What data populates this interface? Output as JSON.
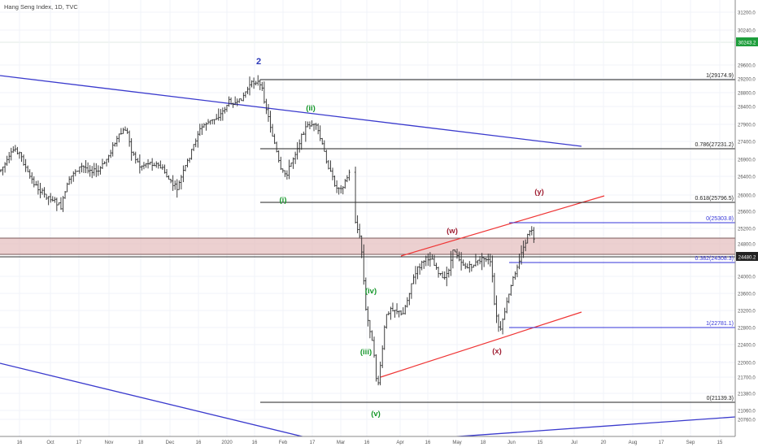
{
  "header": {
    "title": "Hang Seng Index, 1D, TVC"
  },
  "colors": {
    "background": "#ffffff",
    "bar": "#2b2b2b",
    "grid": "#f0f3f8",
    "channel_blue": "#3a3acd",
    "channel_red": "#ef3535",
    "fib_blue": "#3434d8",
    "fib_black": "#222222",
    "zone_fill": "#e6c0c0",
    "wave_blue": "#2a37b8",
    "wave_green": "#15972a",
    "wave_red": "#a02034",
    "price_tag_green": "#1e9e3c",
    "price_tag_dark": "#222222"
  },
  "chart_data": {
    "type": "ohlc",
    "symbol": "Hang Seng Index",
    "interval": "1D",
    "source": "TVC",
    "grid": true,
    "y_axis": {
      "position": "right",
      "range": [
        20600,
        31500
      ],
      "ticks": [
        "31200.0",
        "30240.0",
        "29600.0",
        "29200.0",
        "28800.0",
        "28400.0",
        "27900.0",
        "27400.0",
        "26900.0",
        "26400.0",
        "26000.0",
        "25600.0",
        "25200.0",
        "24800.0",
        "24000.0",
        "23600.0",
        "23200.0",
        "22800.0",
        "22400.0",
        "22000.0",
        "21700.0",
        "21380.0",
        "21060.0",
        "20760.0"
      ]
    },
    "x_axis": {
      "ticks": [
        "16",
        "Oct",
        "17",
        "Nov",
        "18",
        "Dec",
        "16",
        "2020",
        "16",
        "Feb",
        "17",
        "Mar",
        "16",
        "Apr",
        "16",
        "May",
        "18",
        "Jun",
        "15",
        "Jul",
        "20",
        "Aug",
        "17",
        "Sep",
        "15"
      ]
    },
    "price_labels": [
      {
        "text": "30243.2",
        "value": 30243.2,
        "style": "green"
      },
      {
        "text": "24480.2",
        "value": 24480.2,
        "style": "dark"
      }
    ],
    "fib_levels": [
      {
        "label": "1(29174.9)",
        "value": 29174.9,
        "color": "black"
      },
      {
        "label": "0.786(27231.2)",
        "value": 27231.2,
        "color": "black"
      },
      {
        "label": "0.618(25796.5)",
        "value": 25796.5,
        "color": "black"
      },
      {
        "label": "0(21139.3)",
        "value": 21139.3,
        "color": "black"
      },
      {
        "label": "0(25303.8)",
        "value": 25303.8,
        "color": "blue"
      },
      {
        "label": "0.382(24308.3)",
        "value": 24308.3,
        "color": "blue"
      },
      {
        "label": "1(22781.1)",
        "value": 22781.1,
        "color": "blue"
      }
    ],
    "resistance_zone": {
      "from": 24540,
      "to": 24930
    },
    "wave_labels": [
      {
        "text": "2",
        "color": "blue"
      },
      {
        "text": "(ii)",
        "color": "green"
      },
      {
        "text": "(i)",
        "color": "green"
      },
      {
        "text": "(iv)",
        "color": "green"
      },
      {
        "text": "(iii)",
        "color": "green"
      },
      {
        "text": "(v)",
        "color": "green"
      },
      {
        "text": "(w)",
        "color": "red"
      },
      {
        "text": "(x)",
        "color": "red"
      },
      {
        "text": "(y)",
        "color": "red"
      }
    ]
  }
}
